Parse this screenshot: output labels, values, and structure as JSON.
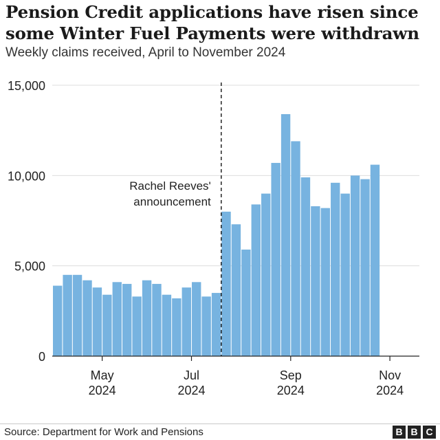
{
  "header": {
    "title_line1": "Pension Credit applications have risen since",
    "title_line2": "some Winter Fuel Payments were withdrawn",
    "subtitle": "Weekly claims received, April to November 2024"
  },
  "footer": {
    "source": "Source: Department for Work and Pensions",
    "logo_letters": [
      "B",
      "B",
      "C"
    ]
  },
  "colors": {
    "bar": "#77b3e0",
    "grid": "#dddddd",
    "axis": "#222222",
    "text": "#222222"
  },
  "chart_data": {
    "type": "bar",
    "ylim": [
      0,
      15000
    ],
    "yticks": [
      0,
      5000,
      10000,
      15000
    ],
    "ytick_labels": [
      "0",
      "5,000",
      "10,000",
      "15,000"
    ],
    "grid": true,
    "xtick_labels": [
      {
        "month": "May",
        "year": "2024",
        "after_bar": 5
      },
      {
        "month": "Jul",
        "year": "2024",
        "after_bar": 14
      },
      {
        "month": "Sep",
        "year": "2024",
        "after_bar": 24
      },
      {
        "month": "Nov",
        "year": "2024",
        "after_bar": 34
      }
    ],
    "values": [
      3900,
      4500,
      4500,
      4200,
      3800,
      3400,
      4100,
      4000,
      3300,
      4200,
      4000,
      3400,
      3200,
      3800,
      4100,
      3300,
      3500,
      8000,
      7300,
      5900,
      8400,
      9000,
      10700,
      13400,
      11900,
      9900,
      8300,
      8200,
      9600,
      9000,
      10000,
      9800,
      10600
    ],
    "annotation": {
      "text_line1": "Rachel Reeves'",
      "text_line2": "announcement",
      "after_bar": 17
    }
  }
}
